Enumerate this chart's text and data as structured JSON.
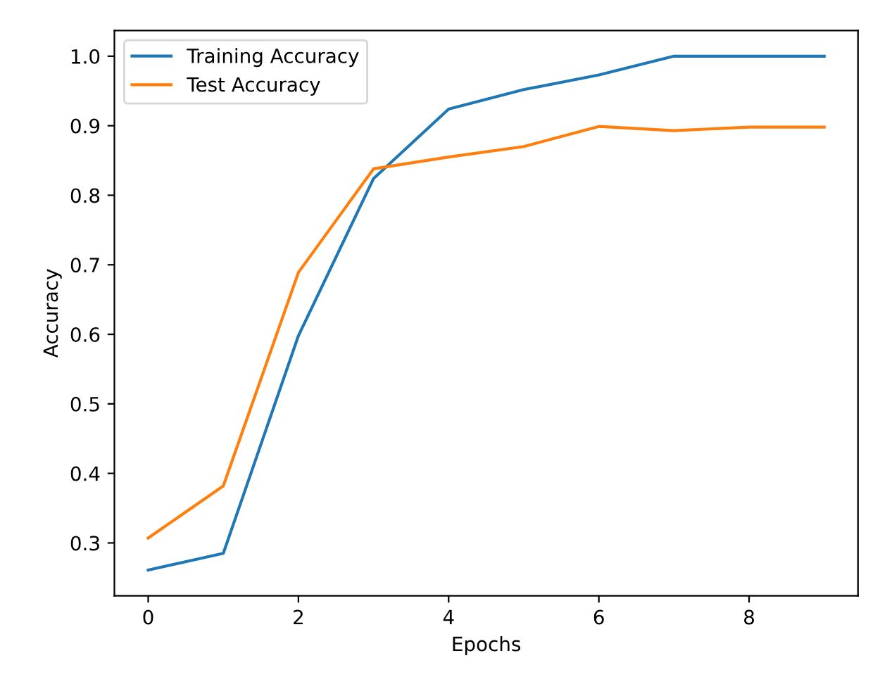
{
  "chart_data": {
    "type": "line",
    "xlabel": "Epochs",
    "ylabel": "Accuracy",
    "x": [
      0,
      1,
      2,
      3,
      4,
      5,
      6,
      7,
      8,
      9
    ],
    "series": [
      {
        "name": "Training Accuracy",
        "color": "#1f77b4",
        "values": [
          0.261,
          0.285,
          0.598,
          0.824,
          0.924,
          0.952,
          0.973,
          1.0,
          1.0,
          1.0
        ]
      },
      {
        "name": "Test Accuracy",
        "color": "#ff7f0e",
        "values": [
          0.307,
          0.382,
          0.689,
          0.838,
          0.855,
          0.87,
          0.899,
          0.893,
          0.898,
          0.898
        ]
      }
    ],
    "xlim": [
      -0.45,
      9.45
    ],
    "ylim": [
      0.224,
      1.037
    ],
    "xticks": [
      0,
      2,
      4,
      6,
      8
    ],
    "yticks": [
      0.3,
      0.4,
      0.5,
      0.6,
      0.7,
      0.8,
      0.9,
      {
        "value": 1.0,
        "label": "1.0"
      }
    ],
    "legend": "top left",
    "grid": false,
    "marker": "none",
    "line_style": "solid"
  }
}
